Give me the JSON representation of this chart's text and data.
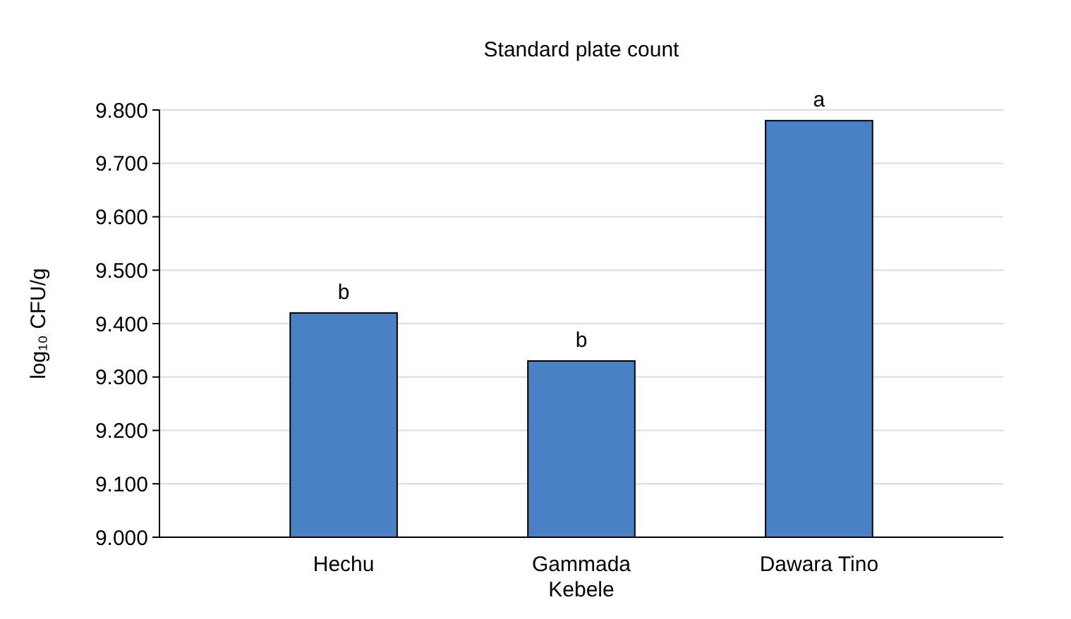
{
  "chart_data": {
    "type": "bar",
    "title": "Standard plate count",
    "ylabel": "log₁₀ CFU/g",
    "categories": [
      "Hechu",
      "Gammada Kebele",
      "Dawara Tino"
    ],
    "values": [
      9.42,
      9.33,
      9.78
    ],
    "color": "#4a80c4",
    "ylim": [
      9,
      9.8
    ],
    "yticks": [
      {
        "value": 9,
        "label": "9.000"
      },
      {
        "value": 9.1,
        "label": "9.100"
      },
      {
        "value": 9.2,
        "label": "9.200"
      },
      {
        "value": 9.3,
        "label": "9.300"
      },
      {
        "value": 9.4,
        "label": "9.400"
      },
      {
        "value": 9.5,
        "label": "9.500"
      },
      {
        "value": 9.6,
        "label": "9.600"
      },
      {
        "value": 9.7,
        "label": "9.700"
      },
      {
        "value": 9.8,
        "label": "9.800"
      }
    ],
    "grid": true,
    "annotations": [
      {
        "text": "b",
        "x": "Hechu",
        "y": 9.42
      },
      {
        "text": "b",
        "x": "Gammada Kebele",
        "y": 9.33
      },
      {
        "text": "a",
        "x": "Dawara Tino",
        "y": 9.78
      }
    ]
  }
}
